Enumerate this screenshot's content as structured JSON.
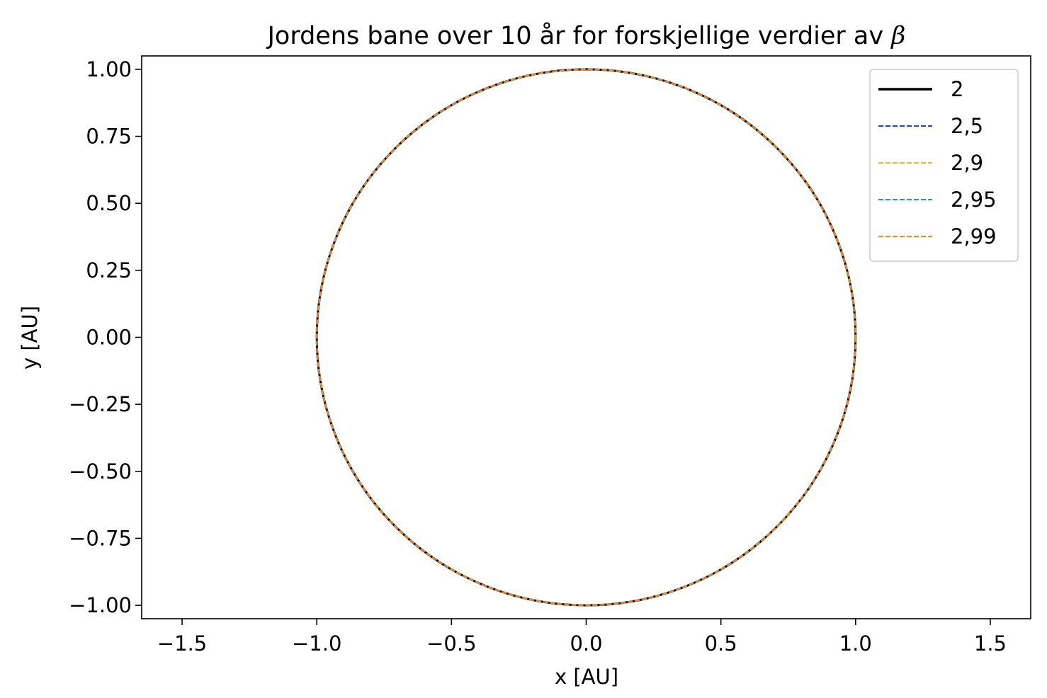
{
  "chart_data": {
    "type": "line",
    "title": "Jordens bane over 10 år for forskjellige verdier av ",
    "title_symbol": "β",
    "xlabel": "x [AU]",
    "ylabel": "y [AU]",
    "xlim": [
      -1.65,
      1.65
    ],
    "ylim": [
      -1.05,
      1.05
    ],
    "x_ticks": [
      -1.5,
      -1.0,
      -0.5,
      0.0,
      0.5,
      1.0,
      1.5
    ],
    "x_tick_labels": [
      "−1.5",
      "−1.0",
      "−0.5",
      "0.0",
      "0.5",
      "1.0",
      "1.5"
    ],
    "y_ticks": [
      1.0,
      0.75,
      0.5,
      0.25,
      0.0,
      -0.25,
      -0.5,
      -0.75,
      -1.0
    ],
    "y_tick_labels": [
      "1.00",
      "0.75",
      "0.50",
      "0.25",
      "0.00",
      "−0.25",
      "−0.50",
      "−0.75",
      "−1.00"
    ],
    "grid": false,
    "legend_position": "top-right",
    "series": [
      {
        "name": "2",
        "color": "#000000",
        "style": "solid",
        "center": [
          0.0,
          0.0
        ],
        "radius": 1.0
      },
      {
        "name": "2,5",
        "color": "#1f3fff",
        "style": "dashed",
        "center": [
          0.0,
          0.0
        ],
        "radius": 1.0
      },
      {
        "name": "2,9",
        "color": "#d4c430",
        "style": "dashed",
        "center": [
          0.0,
          0.0
        ],
        "radius": 1.0
      },
      {
        "name": "2,95",
        "color": "#3a86c8",
        "style": "dashed",
        "center": [
          0.0,
          0.0
        ],
        "radius": 1.0
      },
      {
        "name": "2,99",
        "color": "#f08a2c",
        "style": "dashed",
        "center": [
          0.0,
          0.0
        ],
        "radius": 1.0
      }
    ]
  }
}
